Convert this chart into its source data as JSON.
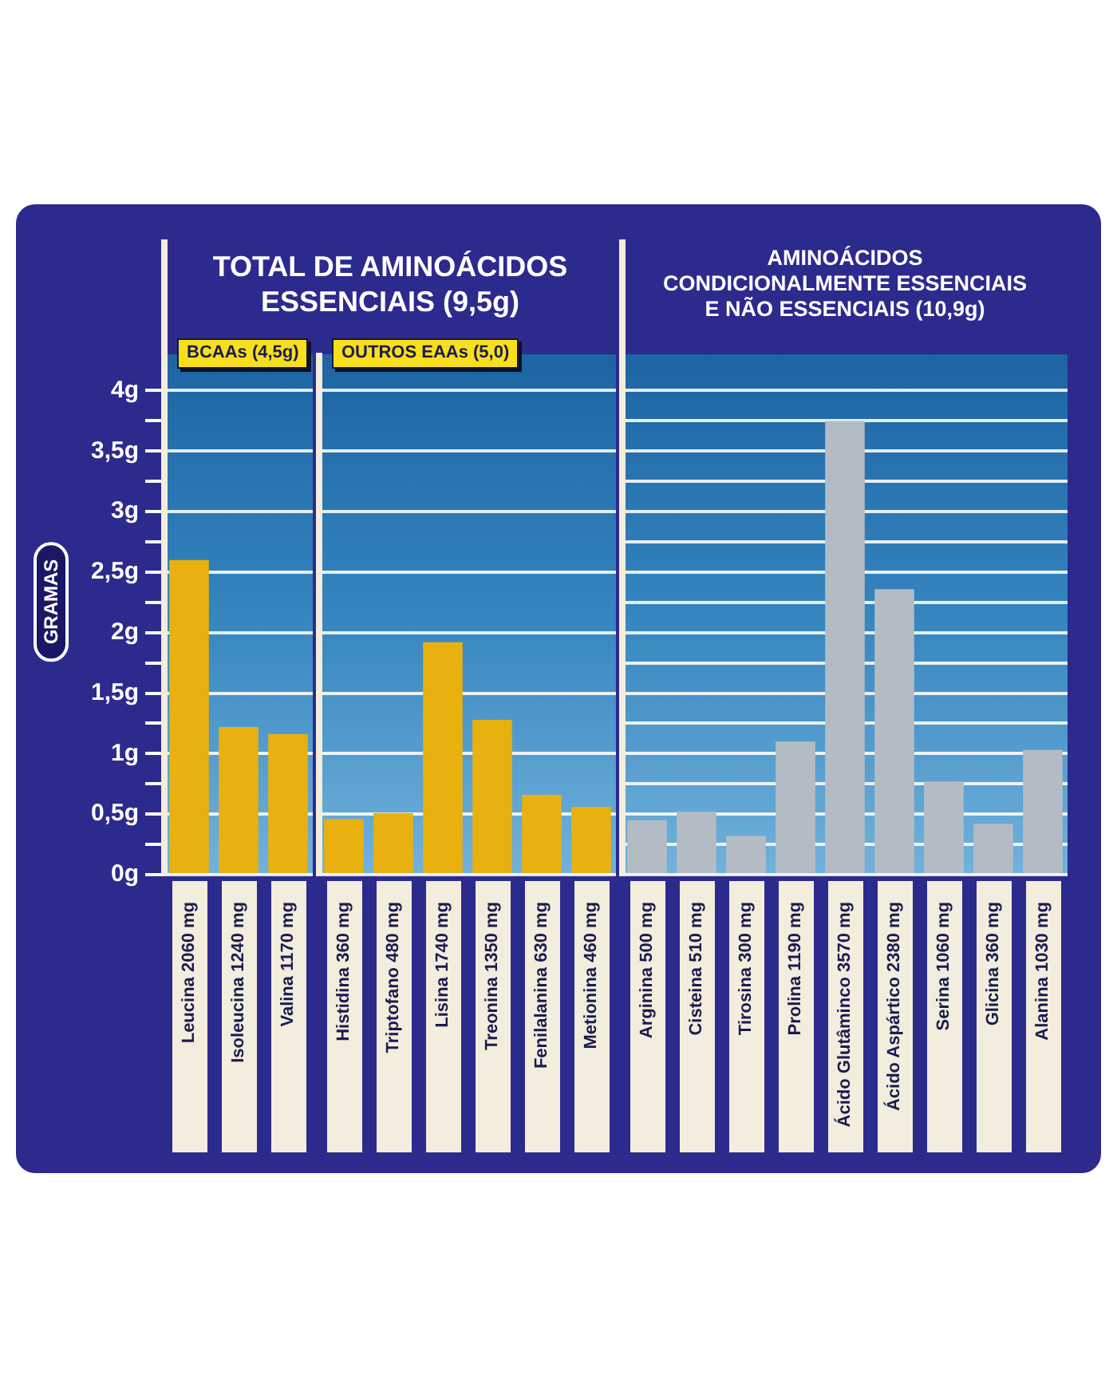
{
  "chart_data": [
    {
      "type": "bar",
      "title": "TOTAL DE AMINOÁCIDOS ESSENCIAIS (9,5g)",
      "subtitle": "BCAAs (4,5g)",
      "ylabel": "GRAMAS",
      "categories": [
        "Leucina 2060 mg",
        "Isoleucina 1240 mg",
        "Valina 1170 mg"
      ],
      "values": [
        2.6,
        1.22,
        1.16
      ],
      "color": "#e8b10f",
      "ylim": [
        0,
        4.3
      ],
      "yticks": [
        {
          "value": 0,
          "label": "0g"
        },
        {
          "value": 0.25,
          "label": null
        },
        {
          "value": 0.5,
          "label": "0,5g"
        },
        {
          "value": 0.75,
          "label": null
        },
        {
          "value": 1,
          "label": "1g"
        },
        {
          "value": 1.25,
          "label": null
        },
        {
          "value": 1.5,
          "label": "1,5g"
        },
        {
          "value": 1.75,
          "label": null
        },
        {
          "value": 2,
          "label": "2g"
        },
        {
          "value": 2.25,
          "label": null
        },
        {
          "value": 2.5,
          "label": "2,5g"
        },
        {
          "value": 2.75,
          "label": null
        },
        {
          "value": 3,
          "label": "3g"
        },
        {
          "value": 3.25,
          "label": null
        },
        {
          "value": 3.5,
          "label": "3,5g"
        },
        {
          "value": 3.75,
          "label": null
        },
        {
          "value": 4,
          "label": "4g"
        }
      ],
      "grid": "y"
    },
    {
      "type": "bar",
      "subtitle": "OUTROS EAAs (5,0)",
      "categories": [
        "Histidina 360 mg",
        "Triptofano 480 mg",
        "Lisina 1740 mg",
        "Treonina 1350 mg",
        "Fenilalanina 630 mg",
        "Metionina 460 mg"
      ],
      "values": [
        0.46,
        0.51,
        1.92,
        1.28,
        0.66,
        0.56
      ],
      "color": "#e8b10f",
      "ylim": [
        0,
        4.3
      ],
      "yticks": [
        0,
        0.5,
        1,
        1.5,
        2,
        2.5,
        3,
        3.5,
        4
      ],
      "grid": "y",
      "tick_labels": "x"
    },
    {
      "type": "bar",
      "title": "AMINOÁCIDOS CONDICIONALMENTE ESSENCIAIS E NÃO ESSENCIAIS (10,9g)",
      "categories": [
        "Arginina 500 mg",
        "Cisteina 510 mg",
        "Tirosina 300 mg",
        "Prolina 1190 mg",
        "Ácido Glutâminco 3570 mg",
        "Ácido Aspártico 2380 mg",
        "Serina 1060 mg",
        "Glicina 360 mg",
        "Alanina 1030 mg"
      ],
      "values": [
        0.45,
        0.52,
        0.32,
        1.1,
        3.75,
        2.36,
        0.77,
        0.42,
        1.03
      ],
      "color": "#b3bcc5",
      "ylim": [
        0,
        4.3
      ],
      "yticks": [
        0,
        0.25,
        0.5,
        0.75,
        1,
        1.25,
        1.5,
        1.75,
        2,
        2.25,
        2.5,
        2.75,
        3,
        3.25,
        3.5,
        3.75,
        4
      ],
      "grid": "y",
      "tick_labels": "x"
    }
  ]
}
